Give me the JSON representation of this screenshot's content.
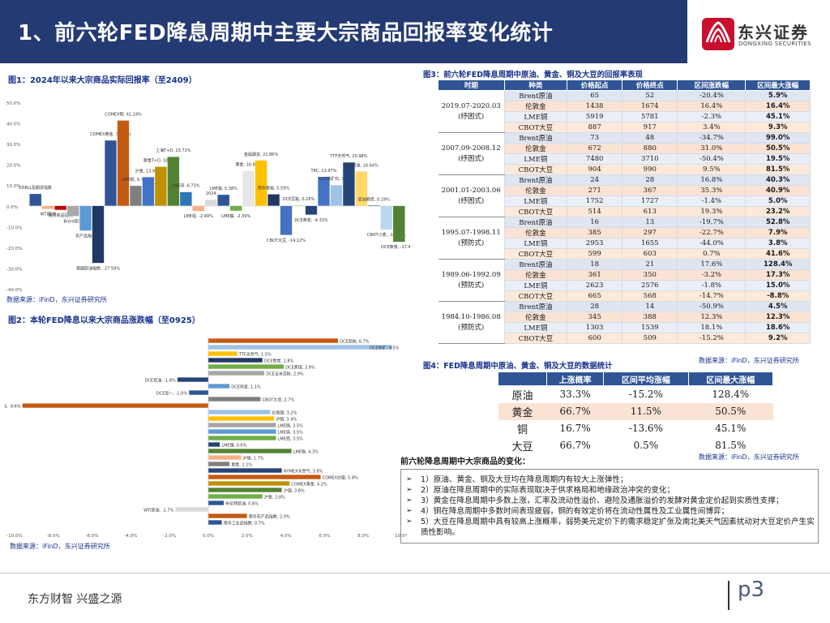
{
  "header": {
    "title": "1、前六轮FED降息周期中主要大宗商品回报率变化统计",
    "logo_cn": "东兴证券",
    "logo_en": "DONGXING SECURITIES",
    "colors": {
      "bar": "#243a73",
      "logo": "#c8102e"
    }
  },
  "figure1": {
    "caption": "图1：2024年以来大宗商品实际回报率（至2409）",
    "source": "数据来源：iFinD，东兴证券研究所"
  },
  "figure2": {
    "caption": "图2：本轮FED降息以来大宗商品涨跌幅（至0925）",
    "source": "数据来源：iFinD，东兴证券研究所"
  },
  "figure3": {
    "caption": "图3：前六轮FED降息周期中原油、黄金、铜及大豆的回报率表现",
    "source": "数据来源：iFinD，东兴证券研究所",
    "headers": [
      "时期",
      "种类",
      "价格起点",
      "价格终点",
      "区间涨跌幅",
      "区间最大涨幅"
    ],
    "groups": [
      {
        "period": "2019.07-2020.03",
        "type": "(纾困式)",
        "rows": [
          [
            "Brent原油",
            "65",
            "52",
            "-20.4%",
            "5.9%"
          ],
          [
            "伦敦金",
            "1438",
            "1674",
            "16.4%",
            "16.4%"
          ],
          [
            "LME铜",
            "5919",
            "5781",
            "-2.3%",
            "45.1%"
          ],
          [
            "CBOT大豆",
            "887",
            "917",
            "3.4%",
            "9.3%"
          ]
        ]
      },
      {
        "period": "2007.09-2008.12",
        "type": "(纾困式)",
        "rows": [
          [
            "Brent原油",
            "73",
            "48",
            "-34.7%",
            "99.0%"
          ],
          [
            "伦敦金",
            "672",
            "880",
            "31.0%",
            "50.5%"
          ],
          [
            "LME铜",
            "7480",
            "3710",
            "-50.4%",
            "19.5%"
          ],
          [
            "CBOT大豆",
            "904",
            "990",
            "9.5%",
            "81.5%"
          ]
        ]
      },
      {
        "period": "2001.01-2003.06",
        "type": "(纾困式)",
        "rows": [
          [
            "Brent原油",
            "24",
            "28",
            "16.8%",
            "40.3%"
          ],
          [
            "伦敦金",
            "271",
            "367",
            "35.3%",
            "40.9%"
          ],
          [
            "LME铜",
            "1752",
            "1727",
            "-1.4%",
            "5.0%"
          ],
          [
            "CBOT大豆",
            "514",
            "613",
            "19.3%",
            "23.2%"
          ]
        ]
      },
      {
        "period": "1995.07-1998.11",
        "type": "(预防式)",
        "rows": [
          [
            "Brent原油",
            "16",
            "13",
            "-19.7%",
            "52.8%"
          ],
          [
            "伦敦金",
            "385",
            "297",
            "-22.7%",
            "7.9%"
          ],
          [
            "LME铜",
            "2953",
            "1655",
            "-44.0%",
            "3.8%"
          ],
          [
            "CBOT大豆",
            "599",
            "603",
            "0.7%",
            "41.6%"
          ]
        ]
      },
      {
        "period": "1989.06-1992.09",
        "type": "(预防式)",
        "rows": [
          [
            "Brent原油",
            "18",
            "21",
            "17.6%",
            "128.4%"
          ],
          [
            "伦敦金",
            "361",
            "350",
            "-3.2%",
            "17.3%"
          ],
          [
            "LME铜",
            "2623",
            "2576",
            "-1.8%",
            "15.0%"
          ],
          [
            "CBOT大豆",
            "665",
            "568",
            "-14.7%",
            "-8.8%"
          ]
        ]
      },
      {
        "period": "1984.10-1986.08",
        "type": "(预防式)",
        "rows": [
          [
            "Brent原油",
            "28",
            "14",
            "-50.9%",
            "4.5%"
          ],
          [
            "伦敦金",
            "345",
            "388",
            "12.3%",
            "12.3%"
          ],
          [
            "LME铜",
            "1303",
            "1539",
            "18.1%",
            "18.6%"
          ],
          [
            "CBOT大豆",
            "600",
            "509",
            "-15.2%",
            "9.2%"
          ]
        ]
      }
    ]
  },
  "figure4": {
    "caption": "图4：FED降息周期中原油、黄金、铜及大豆的数据统计",
    "source": "数据来源：iFinD，东兴证券研究所",
    "headers": [
      "",
      "上涨概率",
      "区间平均涨幅",
      "区间最大涨幅"
    ],
    "rows": [
      [
        "原油",
        "33.3%",
        "-15.2%",
        "128.4%"
      ],
      [
        "黄金",
        "66.7%",
        "11.5%",
        "50.5%"
      ],
      [
        "铜",
        "16.7%",
        "-13.6%",
        "45.1%"
      ],
      [
        "大豆",
        "66.7%",
        "0.5%",
        "81.5%"
      ]
    ]
  },
  "notes": {
    "title": "前六轮降息周期中大宗商品的变化：",
    "items": [
      "1）原油、黄金、铜及大豆均在降息周期内有较大上涨弹性；",
      "2）原油在降息周期中的实际表现取决于供求格局和地缘政治冲突的变化；",
      "3）黄金在降息周期中多数上涨，汇率及流动性溢价、避险及通胀溢价的发酵对黄金定价起到实质性支撑；",
      "4）铜在降息周期中多数时间表现疲弱，铜的有效定价将在流动性属性及工业属性间博弈；",
      "5）大豆在降息周期中具有较高上涨概率，弱势美元定价下的需求稳定扩张及南北美天气因素扰动对大豆定价产生实质性影响。"
    ]
  },
  "footer": {
    "slogan": "东方财智  兴盛之源",
    "page": "p3"
  },
  "chart_data": [
    {
      "type": "bar",
      "title": "图1：2024年以来大宗商品实际回报率（至2409）",
      "ylim": [
        -0.4,
        0.5
      ],
      "yticks": [
        "50.0%",
        "40.0%",
        "30.0%",
        "20.0%",
        "10.0%",
        "0.0%",
        "-10.0%",
        "-20.0%",
        "-30.0%",
        "-40.0%"
      ],
      "labels": [
        "CRB以及期货指数",
        "WTI原油",
        "南华商品指数",
        "Brent原油",
        "南华农产品指数",
        "美国原油指数",
        "COMEX黄金",
        "COMEX铜",
        "LME铜",
        "沪金",
        "黄金T+D",
        "上海金",
        "LME锌",
        "LME铝",
        "2024",
        "LME锡",
        "LME镍",
        "CBOT玉米",
        "黄金指数",
        "南华金属指数",
        "CBOT大豆",
        "DCE豆粕",
        "DCE焦炭",
        "TRC",
        "DCE铁矿石",
        "TTF天然气",
        "WTI",
        "原油期货",
        "CBOT小麦",
        "DCE焦煤"
      ],
      "display_labels": [
        "CRB以及期货指数",
        "WTI原油",
        "南华商品指数",
        "Brent原油",
        "农产品指数",
        "美国原油指数, -27.59%",
        "COMEX黄金, 31.60%",
        "COMEX铜, 41.19%",
        "LME铜, 9.71%",
        "沪金, 13.93%",
        "黄金T+D, 18.89%",
        "上海T+D, 23.71%",
        "LME锌, 6.73%",
        "LME铝, -2.49%",
        "2024",
        "LME锡, 5.38%",
        "LME镍, -2.39%",
        "黄金, 16.88%",
        "金属期货, 21.86%",
        "南华金属, 5.59%",
        "CBOT大豆, -14.12%",
        "DCE豆粕, 0.26%",
        "DCE焦炭, -4.33%",
        "TRC, 13.97%",
        "DCE铁矿石, 9.95%",
        "TTF天然气, 20.98%",
        "WTI原油, 16.64%",
        "原油期货, 0.19%",
        "CBOT小麦, -11.49%",
        "DCE焦煤, -17.43%"
      ],
      "values": [
        0.058,
        -0.015,
        -0.02,
        -0.05,
        -0.12,
        -0.276,
        0.316,
        0.412,
        0.097,
        0.139,
        0.189,
        0.237,
        0.067,
        -0.025,
        0.03,
        0.054,
        -0.024,
        0.169,
        0.219,
        0.056,
        -0.141,
        0.003,
        -0.043,
        0.14,
        0.1,
        0.21,
        0.166,
        0.002,
        -0.115,
        -0.174
      ],
      "colors": [
        "#2f5597",
        "#f4b183",
        "#c00000",
        "#a9a9a9",
        "#5b9bd5",
        "#1f3864",
        "#2f5597",
        "#c55a11",
        "#7f7f7f",
        "#4472c4",
        "#bf9000",
        "#548235",
        "#2e75b6",
        "#f4b183",
        "#d9d9d9",
        "#2f5597",
        "#70ad47",
        "#e7e6e6",
        "#ffc000",
        "#203864",
        "#4472c4",
        "#a9d18e",
        "#264478",
        "#4472c4",
        "#9dc3e6",
        "#264478",
        "#ffd966",
        "#2f5597",
        "#bdd7ee",
        "#548235"
      ]
    },
    {
      "type": "bar",
      "orientation": "horizontal",
      "title": "图2：本轮FED降息以来大宗商品涨跌幅（至0925）",
      "xlim": [
        -0.1,
        0.1
      ],
      "xticks": [
        "-10.0%",
        "-8.0%",
        "-6.0%",
        "-4.0%",
        "-2.0%",
        "0.0%",
        "2.0%",
        "4.0%",
        "6.0%",
        "8.0%",
        "10.0%"
      ],
      "display_labels": [
        "DCE豆粕, 6.7%",
        "DCE铁矿, 9.5%",
        "TTF天然气, 1.5%",
        "DCE焦炭, 2.8%",
        "DCE焦煤, 3.9%",
        "DCE玉米淀粉, 2.9%",
        "DCE豆油, -1.6%",
        "DCE鸡蛋, 1.1%",
        "DCE豆一, -1.0%",
        "CBOT大豆, 2.7%",
        "DCE棕榈油, -9.6%",
        "伦敦银, 3.2%",
        "沪铜, 3.4%",
        "LME铜, 3.5%",
        "LME锌, 3.5%",
        "LME铝, 3.5%",
        "LME镍, 0.6%",
        "LME锡, 4.3%",
        "沪锡, 1.7%",
        "黄金, 1.1%",
        "NYMEX天然气, 3.8%",
        "COMEX白银, 5.8%",
        "COMEX黄金, 4.2%",
        "沪银, 3.8%",
        "沪金, 2.8%",
        "布伦特原油, 0.8%",
        "WTI原油, -1.7%",
        "南华农产品指数, 2.0%",
        "南华工业品指数, 0.7%"
      ],
      "values": [
        0.067,
        0.095,
        0.015,
        0.028,
        0.039,
        0.029,
        -0.016,
        0.011,
        -0.01,
        0.027,
        -0.096,
        0.032,
        0.034,
        0.035,
        0.035,
        0.035,
        0.006,
        0.043,
        0.017,
        0.011,
        0.038,
        0.058,
        0.042,
        0.038,
        0.028,
        0.008,
        -0.017,
        0.02,
        0.007
      ],
      "colors": [
        "#c55a11",
        "#9dc3e6",
        "#ffc000",
        "#1f3864",
        "#70ad47",
        "#a5a5a5",
        "#264478",
        "#5b9bd5",
        "#2f5597",
        "#7f7f7f",
        "#c55a11",
        "#9dc3e6",
        "#ffc000",
        "#a5a5a5",
        "#5b9bd5",
        "#70ad47",
        "#264478",
        "#548235",
        "#f4b183",
        "#7f7f7f",
        "#264478",
        "#c55a11",
        "#bf9000",
        "#548235",
        "#70ad47",
        "#2f5597",
        "#d9d9d9",
        "#c55a11",
        "#2f5597"
      ]
    }
  ]
}
